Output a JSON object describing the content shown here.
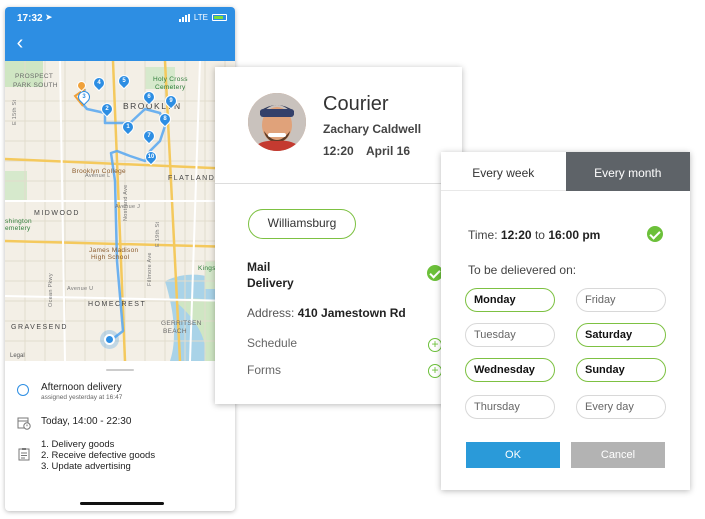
{
  "phone": {
    "status": {
      "time": "17:32",
      "network": "LTE"
    },
    "map": {
      "labels": {
        "prospect": "PROSPECT",
        "park_south": "PARK SOUTH",
        "brooklyn": "BROOKLYN",
        "flatlands": "FLATLANDS",
        "midwood": "MIDWOOD",
        "homecrest": "HOMECREST",
        "gravesend": "GRAVESEND",
        "gerritsen": "GERRITSEN",
        "beach": "BEACH",
        "holy_cross": "Holy Cross",
        "cemetery": "Cemetery",
        "brooklyn_college": "Brooklyn College",
        "james_madison": "James Madison",
        "high_school": "High School",
        "washington": "shington",
        "cemetery2": "emetery",
        "kings": "Kings",
        "avenue_j": "Avenue J",
        "avenue_l": "Avenue L",
        "avenue_u": "Avenue U",
        "e19": "E 19th St",
        "e15": "E 15th St",
        "nostrand": "Nostrand Ave",
        "fillmore": "Fillmore Ave",
        "ocean": "Ocean Pkwy",
        "legal": "Legal"
      },
      "pins": [
        "1",
        "2",
        "3",
        "4",
        "5",
        "6",
        "7",
        "8",
        "9",
        "10"
      ]
    },
    "delivery": {
      "title": "Afternoon delivery",
      "assigned": "assigned yesterday at 16:47",
      "time": "Today, 14:00 - 22:30",
      "tasks": [
        "1. Delivery goods",
        "2. Receive defective goods",
        "3. Update advertising"
      ]
    }
  },
  "courier": {
    "title": "Courier",
    "name": "Zachary Caldwell",
    "time": "12:20",
    "date": "April 16",
    "area": "Williamsburg",
    "mail_line1": "Mail",
    "mail_line2": "Delivery",
    "address_label": "Address:",
    "address_value": "410 Jamestown Rd",
    "schedule_label": "Schedule",
    "forms_label": "Forms"
  },
  "schedule": {
    "tabs": [
      {
        "label": "Every week",
        "active": false
      },
      {
        "label": "Every month",
        "active": true
      }
    ],
    "time_label": "Time:",
    "time_from": "12:20",
    "time_to_word": "to",
    "time_to": "16:00 pm",
    "deliver_label": "To  be delievered on:",
    "days": [
      {
        "label": "Monday",
        "selected": true
      },
      {
        "label": "Friday",
        "selected": false
      },
      {
        "label": "Tuesday",
        "selected": false
      },
      {
        "label": "Saturday",
        "selected": true
      },
      {
        "label": "Wednesday",
        "selected": true
      },
      {
        "label": "Sunday",
        "selected": true
      },
      {
        "label": "Thursday",
        "selected": false
      },
      {
        "label": "Every day",
        "selected": false
      }
    ],
    "ok_label": "OK",
    "cancel_label": "Cancel"
  },
  "colors": {
    "primary_blue": "#2d8ee3",
    "accent_green": "#6cc03a",
    "tab_active": "#5e6368",
    "ok_button": "#2a9ad9",
    "cancel_button": "#b3b3b3"
  }
}
